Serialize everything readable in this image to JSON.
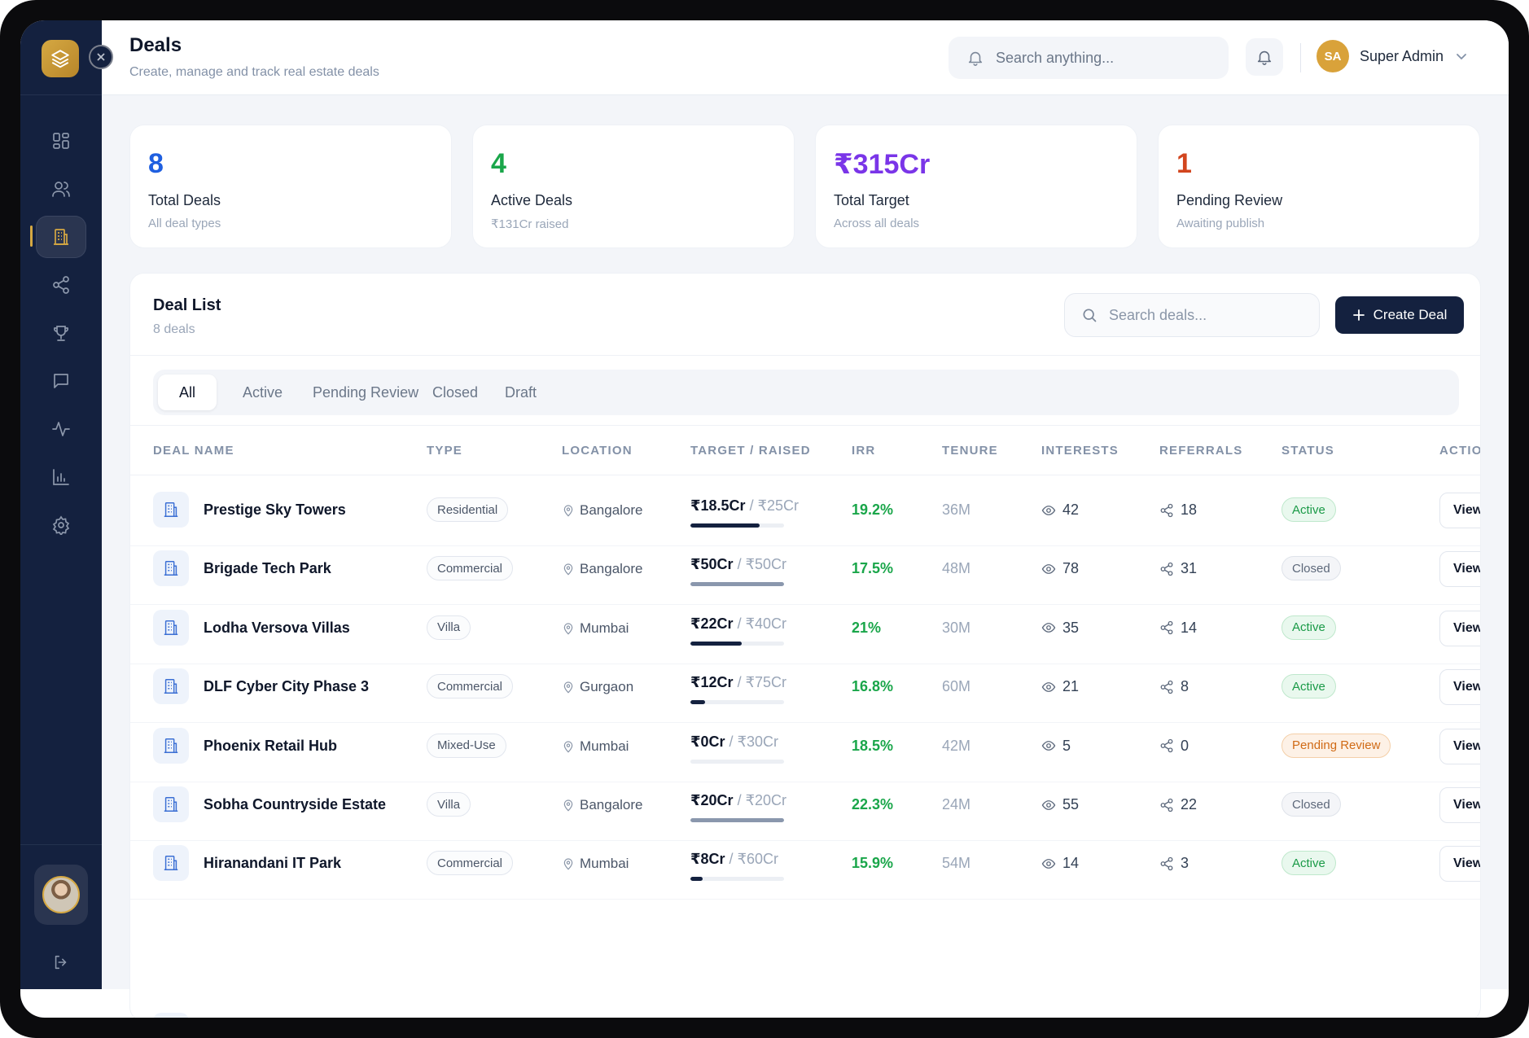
{
  "header": {
    "title": "Deals",
    "subtitle": "Create, manage and track real estate deals",
    "search_placeholder": "Search anything...",
    "user": {
      "initials": "SA",
      "name": "Super Admin"
    }
  },
  "sidebar": {
    "items": [
      {
        "name": "dashboard",
        "icon": "grid-icon",
        "active": false
      },
      {
        "name": "users",
        "icon": "users-icon",
        "active": false
      },
      {
        "name": "deals",
        "icon": "building-icon",
        "active": true
      },
      {
        "name": "referrals",
        "icon": "share-icon",
        "active": false
      },
      {
        "name": "rewards",
        "icon": "trophy-icon",
        "active": false
      },
      {
        "name": "messages",
        "icon": "chat-icon",
        "active": false
      },
      {
        "name": "activity",
        "icon": "activity-icon",
        "active": false
      },
      {
        "name": "reports",
        "icon": "bar-chart-icon",
        "active": false
      },
      {
        "name": "settings",
        "icon": "gear-icon",
        "active": false
      }
    ]
  },
  "stats": [
    {
      "value": "8",
      "label": "Total Deals",
      "sub": "All deal types",
      "color": "#1f5fe0"
    },
    {
      "value": "4",
      "label": "Active Deals",
      "sub": "₹131Cr raised",
      "color": "#1aa64a"
    },
    {
      "value": "₹315Cr",
      "label": "Total Target",
      "sub": "Across all deals",
      "color": "#7a35e8"
    },
    {
      "value": "1",
      "label": "Pending Review",
      "sub": "Awaiting publish",
      "color": "#d2451e"
    }
  ],
  "deal_list": {
    "title": "Deal List",
    "count_label": "8 deals",
    "search_placeholder": "Search deals...",
    "create_label": "Create Deal",
    "tabs": [
      "All",
      "Active",
      "Pending Review",
      "Closed",
      "Draft"
    ],
    "active_tab": "All",
    "columns": [
      "DEAL NAME",
      "TYPE",
      "LOCATION",
      "TARGET / RAISED",
      "IRR",
      "TENURE",
      "INTERESTS",
      "REFERRALS",
      "STATUS",
      "ACTIO"
    ],
    "view_label": "View",
    "rows": [
      {
        "name": "Prestige Sky Towers",
        "type": "Residential",
        "location": "Bangalore",
        "raised": "₹18.5Cr",
        "target": "₹25Cr",
        "progress": 0.74,
        "irr": "19.2%",
        "tenure": "36M",
        "interests": "42",
        "referrals": "18",
        "status": "Active"
      },
      {
        "name": "Brigade Tech Park",
        "type": "Commercial",
        "location": "Bangalore",
        "raised": "₹50Cr",
        "target": "₹50Cr",
        "progress": 1.0,
        "irr": "17.5%",
        "tenure": "48M",
        "interests": "78",
        "referrals": "31",
        "status": "Closed"
      },
      {
        "name": "Lodha Versova Villas",
        "type": "Villa",
        "location": "Mumbai",
        "raised": "₹22Cr",
        "target": "₹40Cr",
        "progress": 0.55,
        "irr": "21%",
        "tenure": "30M",
        "interests": "35",
        "referrals": "14",
        "status": "Active"
      },
      {
        "name": "DLF Cyber City Phase 3",
        "type": "Commercial",
        "location": "Gurgaon",
        "raised": "₹12Cr",
        "target": "₹75Cr",
        "progress": 0.16,
        "irr": "16.8%",
        "tenure": "60M",
        "interests": "21",
        "referrals": "8",
        "status": "Active"
      },
      {
        "name": "Phoenix Retail Hub",
        "type": "Mixed-Use",
        "location": "Mumbai",
        "raised": "₹0Cr",
        "target": "₹30Cr",
        "progress": 0.0,
        "irr": "18.5%",
        "tenure": "42M",
        "interests": "5",
        "referrals": "0",
        "status": "Pending Review"
      },
      {
        "name": "Sobha Countryside Estate",
        "type": "Villa",
        "location": "Bangalore",
        "raised": "₹20Cr",
        "target": "₹20Cr",
        "progress": 1.0,
        "irr": "22.3%",
        "tenure": "24M",
        "interests": "55",
        "referrals": "22",
        "status": "Closed"
      },
      {
        "name": "Hiranandani IT Park",
        "type": "Commercial",
        "location": "Mumbai",
        "raised": "₹8Cr",
        "target": "₹60Cr",
        "progress": 0.13,
        "irr": "15.9%",
        "tenure": "54M",
        "interests": "14",
        "referrals": "3",
        "status": "Active"
      }
    ]
  },
  "colors": {
    "sidebar_bg": "#14213f",
    "accent_gold": "#d5a842",
    "irr_green": "#1aa64a",
    "bar_active": "#14213f",
    "bar_closed": "#8a97ad"
  }
}
